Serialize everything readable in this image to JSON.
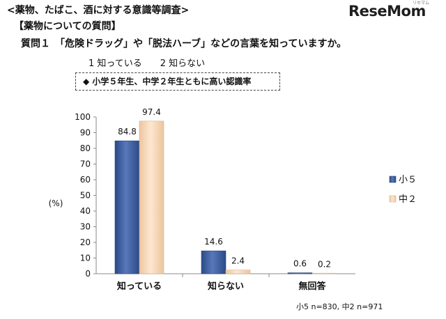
{
  "header": {
    "title": "<薬物、たばこ、酒に対する意識等調査>",
    "section": "【薬物についての質問】",
    "question": "質問１　「危険ドラッグ」や「脱法ハーブ」などの言葉を知っていますか。",
    "options": "1  知っている　　2  知らない",
    "callout": "◆ 小学５年生、中学２年生ともに高い認識率"
  },
  "logo": {
    "text": "ReseMom",
    "ruby": "リセマム"
  },
  "note": "小5 n=830, 中2 n=971",
  "chart_data": {
    "type": "bar",
    "categories": [
      "知っている",
      "知らない",
      "無回答"
    ],
    "series": [
      {
        "name": "小５",
        "values": [
          84.8,
          14.6,
          0.6
        ],
        "color": "#3e5e9e"
      },
      {
        "name": "中２",
        "values": [
          97.4,
          2.4,
          0.2
        ],
        "color": "#f6d8b7"
      }
    ],
    "ylabel": "(%)",
    "ylim": [
      0,
      100
    ],
    "yticks": [
      0,
      10,
      20,
      30,
      40,
      50,
      60,
      70,
      80,
      90,
      100
    ],
    "grid": false,
    "legend": "right"
  }
}
